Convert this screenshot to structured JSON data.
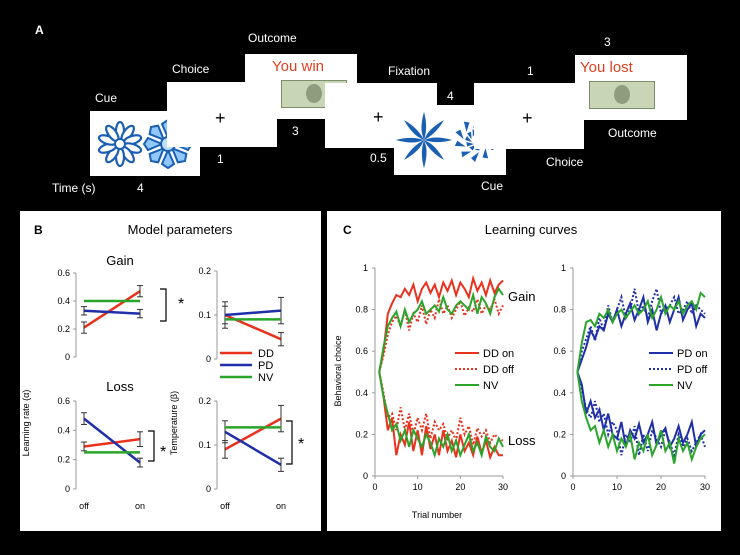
{
  "panel_a": {
    "letter": "A",
    "labels": {
      "cue": "Cue",
      "choice": "Choice",
      "outcome": "Outcome",
      "fixation": "Fixation",
      "time": "Time (s)",
      "cue2": "Cue",
      "choice2": "Choice",
      "outcome2": "Outcome"
    },
    "durations": {
      "cue": "4",
      "choice": "1",
      "outcome": "3",
      "fixation": "0.5",
      "cue2": "4",
      "choice2": "1",
      "outcome2": "3"
    },
    "plus": "+",
    "win_text": "You win",
    "lost_text": "You lost",
    "colors": {
      "outcome_text": "#e04020",
      "stimulus": "#1a5fb4"
    }
  },
  "panel_b": {
    "letter": "B",
    "title": "Model parameters",
    "gain_title": "Gain",
    "loss_title": "Loss",
    "ylabel_lr": "Learning rate (α)",
    "ylabel_temp": "Temperature (β)",
    "xticks": [
      "off",
      "on"
    ],
    "star": "*",
    "legend": [
      "DD",
      "PD",
      "NV"
    ],
    "colors": {
      "DD": "#e8321e",
      "PD": "#1f2fa8",
      "NV": "#2aa52a"
    }
  },
  "panel_c": {
    "letter": "C",
    "title": "Learning curves",
    "ylabel": "Behavioral choice",
    "xlabel": "Trial number",
    "gain_label": "Gain",
    "loss_label": "Loss",
    "legend_left": [
      "DD on",
      "DD off",
      "NV"
    ],
    "legend_right": [
      "PD on",
      "PD off",
      "NV"
    ]
  },
  "chart_data": [
    {
      "type": "line",
      "panel": "B-gain-learning-rate",
      "x": [
        "off",
        "on"
      ],
      "ylim": [
        0,
        0.6
      ],
      "yticks": [
        "0",
        "0.2",
        "0.4",
        "0.6"
      ],
      "series": [
        {
          "name": "DD",
          "values": [
            0.21,
            0.47
          ],
          "err": [
            0.04,
            0.04
          ]
        },
        {
          "name": "PD",
          "values": [
            0.33,
            0.31
          ],
          "err": [
            0.03,
            0.03
          ]
        },
        {
          "name": "NV",
          "values": [
            0.4,
            0.4
          ],
          "err": [
            0,
            0
          ]
        }
      ]
    },
    {
      "type": "line",
      "panel": "B-gain-temperature",
      "x": [
        "off",
        "on"
      ],
      "ylim": [
        0,
        0.2
      ],
      "yticks": [
        "0",
        "0.1",
        "0.2"
      ],
      "series": [
        {
          "name": "DD",
          "values": [
            0.1,
            0.045
          ],
          "err": [
            0.02,
            0.015
          ]
        },
        {
          "name": "PD",
          "values": [
            0.1,
            0.11
          ],
          "err": [
            0.03,
            0.03
          ]
        },
        {
          "name": "NV",
          "values": [
            0.09,
            0.09
          ],
          "err": [
            0,
            0
          ]
        }
      ]
    },
    {
      "type": "line",
      "panel": "B-loss-learning-rate",
      "x": [
        "off",
        "on"
      ],
      "ylim": [
        0,
        0.6
      ],
      "yticks": [
        "0",
        "0.2",
        "0.4",
        "0.6"
      ],
      "series": [
        {
          "name": "DD",
          "values": [
            0.29,
            0.34
          ],
          "err": [
            0.03,
            0.05
          ]
        },
        {
          "name": "PD",
          "values": [
            0.48,
            0.18
          ],
          "err": [
            0.04,
            0.03
          ]
        },
        {
          "name": "NV",
          "values": [
            0.25,
            0.25
          ],
          "err": [
            0,
            0
          ]
        }
      ]
    },
    {
      "type": "line",
      "panel": "B-loss-temperature",
      "x": [
        "off",
        "on"
      ],
      "ylim": [
        0,
        0.2
      ],
      "yticks": [
        "0",
        "0.1",
        "0.2"
      ],
      "series": [
        {
          "name": "DD",
          "values": [
            0.09,
            0.16
          ],
          "err": [
            0.02,
            0.03
          ]
        },
        {
          "name": "PD",
          "values": [
            0.13,
            0.055
          ],
          "err": [
            0.025,
            0.015
          ]
        },
        {
          "name": "NV",
          "values": [
            0.14,
            0.14
          ],
          "err": [
            0,
            0
          ]
        }
      ]
    },
    {
      "type": "line",
      "panel": "C-left",
      "xlim": [
        0,
        30
      ],
      "ylim": [
        0,
        1
      ],
      "xticks": [
        "0",
        "10",
        "20",
        "30"
      ],
      "yticks": [
        "0",
        "0.2",
        "0.4",
        "0.6",
        "0.8",
        "1"
      ],
      "x": [
        1,
        2,
        3,
        4,
        5,
        6,
        7,
        8,
        9,
        10,
        11,
        12,
        13,
        14,
        15,
        16,
        17,
        18,
        19,
        20,
        21,
        22,
        23,
        24,
        25,
        26,
        27,
        28,
        29,
        30
      ],
      "series": [
        {
          "name": "DD on",
          "style": "solid",
          "gain": [
            0.5,
            0.6,
            0.78,
            0.83,
            0.87,
            0.86,
            0.9,
            0.87,
            0.92,
            0.84,
            0.9,
            0.93,
            0.88,
            0.92,
            0.86,
            0.93,
            0.89,
            0.94,
            0.87,
            0.93,
            0.9,
            0.86,
            0.95,
            0.89,
            0.93,
            0.87,
            0.94,
            0.88,
            0.92,
            0.94
          ],
          "loss": [
            0.5,
            0.38,
            0.22,
            0.28,
            0.1,
            0.2,
            0.15,
            0.26,
            0.12,
            0.22,
            0.1,
            0.24,
            0.13,
            0.2,
            0.1,
            0.22,
            0.12,
            0.17,
            0.09,
            0.2,
            0.12,
            0.16,
            0.1,
            0.19,
            0.11,
            0.17,
            0.09,
            0.14,
            0.1,
            0.1
          ]
        },
        {
          "name": "DD off",
          "style": "dotted",
          "gain": [
            0.5,
            0.58,
            0.68,
            0.74,
            0.77,
            0.72,
            0.8,
            0.7,
            0.78,
            0.74,
            0.82,
            0.73,
            0.8,
            0.76,
            0.85,
            0.78,
            0.82,
            0.76,
            0.8,
            0.84,
            0.77,
            0.81,
            0.79,
            0.85,
            0.78,
            0.82,
            0.8,
            0.85,
            0.78,
            0.82
          ],
          "loss": [
            0.5,
            0.4,
            0.28,
            0.3,
            0.22,
            0.33,
            0.22,
            0.3,
            0.2,
            0.28,
            0.22,
            0.3,
            0.18,
            0.26,
            0.22,
            0.25,
            0.18,
            0.22,
            0.17,
            0.28,
            0.2,
            0.24,
            0.15,
            0.23,
            0.19,
            0.22,
            0.16,
            0.2,
            0.18,
            0.17
          ]
        },
        {
          "name": "NV",
          "style": "solid",
          "gain": [
            0.5,
            0.62,
            0.72,
            0.76,
            0.79,
            0.72,
            0.8,
            0.74,
            0.78,
            0.8,
            0.84,
            0.78,
            0.8,
            0.82,
            0.79,
            0.86,
            0.8,
            0.78,
            0.82,
            0.84,
            0.82,
            0.8,
            0.87,
            0.78,
            0.86,
            0.83,
            0.78,
            0.86,
            0.9,
            0.87
          ],
          "loss": [
            0.5,
            0.38,
            0.3,
            0.22,
            0.25,
            0.17,
            0.22,
            0.14,
            0.22,
            0.18,
            0.14,
            0.2,
            0.16,
            0.1,
            0.18,
            0.14,
            0.2,
            0.12,
            0.17,
            0.1,
            0.15,
            0.2,
            0.12,
            0.16,
            0.1,
            0.19,
            0.14,
            0.12,
            0.18,
            0.14
          ]
        }
      ]
    },
    {
      "type": "line",
      "panel": "C-right",
      "xlim": [
        0,
        30
      ],
      "ylim": [
        0,
        1
      ],
      "xticks": [
        "0",
        "10",
        "20",
        "30"
      ],
      "yticks": [
        "0",
        "0.2",
        "0.4",
        "0.6",
        "0.8",
        "1"
      ],
      "x": [
        1,
        2,
        3,
        4,
        5,
        6,
        7,
        8,
        9,
        10,
        11,
        12,
        13,
        14,
        15,
        16,
        17,
        18,
        19,
        20,
        21,
        22,
        23,
        24,
        25,
        26,
        27,
        28,
        29,
        30
      ],
      "series": [
        {
          "name": "PD on",
          "style": "solid",
          "gain": [
            0.5,
            0.56,
            0.62,
            0.7,
            0.66,
            0.72,
            0.7,
            0.78,
            0.74,
            0.8,
            0.72,
            0.78,
            0.83,
            0.75,
            0.8,
            0.86,
            0.74,
            0.8,
            0.7,
            0.78,
            0.82,
            0.74,
            0.8,
            0.86,
            0.75,
            0.8,
            0.83,
            0.72,
            0.78,
            0.76
          ],
          "loss": [
            0.5,
            0.44,
            0.3,
            0.36,
            0.28,
            0.32,
            0.22,
            0.3,
            0.2,
            0.18,
            0.26,
            0.14,
            0.22,
            0.18,
            0.25,
            0.16,
            0.2,
            0.26,
            0.15,
            0.2,
            0.23,
            0.14,
            0.18,
            0.24,
            0.16,
            0.2,
            0.26,
            0.14,
            0.2,
            0.22
          ]
        },
        {
          "name": "PD off",
          "style": "dotted",
          "gain": [
            0.5,
            0.6,
            0.66,
            0.72,
            0.65,
            0.76,
            0.7,
            0.82,
            0.74,
            0.8,
            0.86,
            0.76,
            0.8,
            0.9,
            0.78,
            0.82,
            0.76,
            0.84,
            0.9,
            0.78,
            0.8,
            0.82,
            0.86,
            0.78,
            0.8,
            0.84,
            0.78,
            0.82,
            0.8,
            0.78
          ],
          "loss": [
            0.5,
            0.42,
            0.32,
            0.28,
            0.36,
            0.26,
            0.3,
            0.2,
            0.26,
            0.22,
            0.1,
            0.2,
            0.16,
            0.24,
            0.1,
            0.2,
            0.12,
            0.22,
            0.18,
            0.14,
            0.22,
            0.16,
            0.1,
            0.2,
            0.14,
            0.18,
            0.12,
            0.16,
            0.2,
            0.14
          ]
        },
        {
          "name": "NV",
          "style": "solid",
          "gain": [
            0.5,
            0.64,
            0.74,
            0.75,
            0.72,
            0.78,
            0.76,
            0.8,
            0.74,
            0.78,
            0.8,
            0.76,
            0.79,
            0.82,
            0.78,
            0.8,
            0.84,
            0.76,
            0.8,
            0.86,
            0.78,
            0.82,
            0.8,
            0.84,
            0.78,
            0.82,
            0.84,
            0.8,
            0.88,
            0.86
          ],
          "loss": [
            0.5,
            0.36,
            0.28,
            0.22,
            0.24,
            0.16,
            0.22,
            0.14,
            0.2,
            0.12,
            0.18,
            0.14,
            0.2,
            0.08,
            0.16,
            0.12,
            0.2,
            0.1,
            0.15,
            0.22,
            0.12,
            0.16,
            0.06,
            0.18,
            0.12,
            0.16,
            0.08,
            0.14,
            0.18,
            0.2
          ]
        }
      ]
    }
  ]
}
